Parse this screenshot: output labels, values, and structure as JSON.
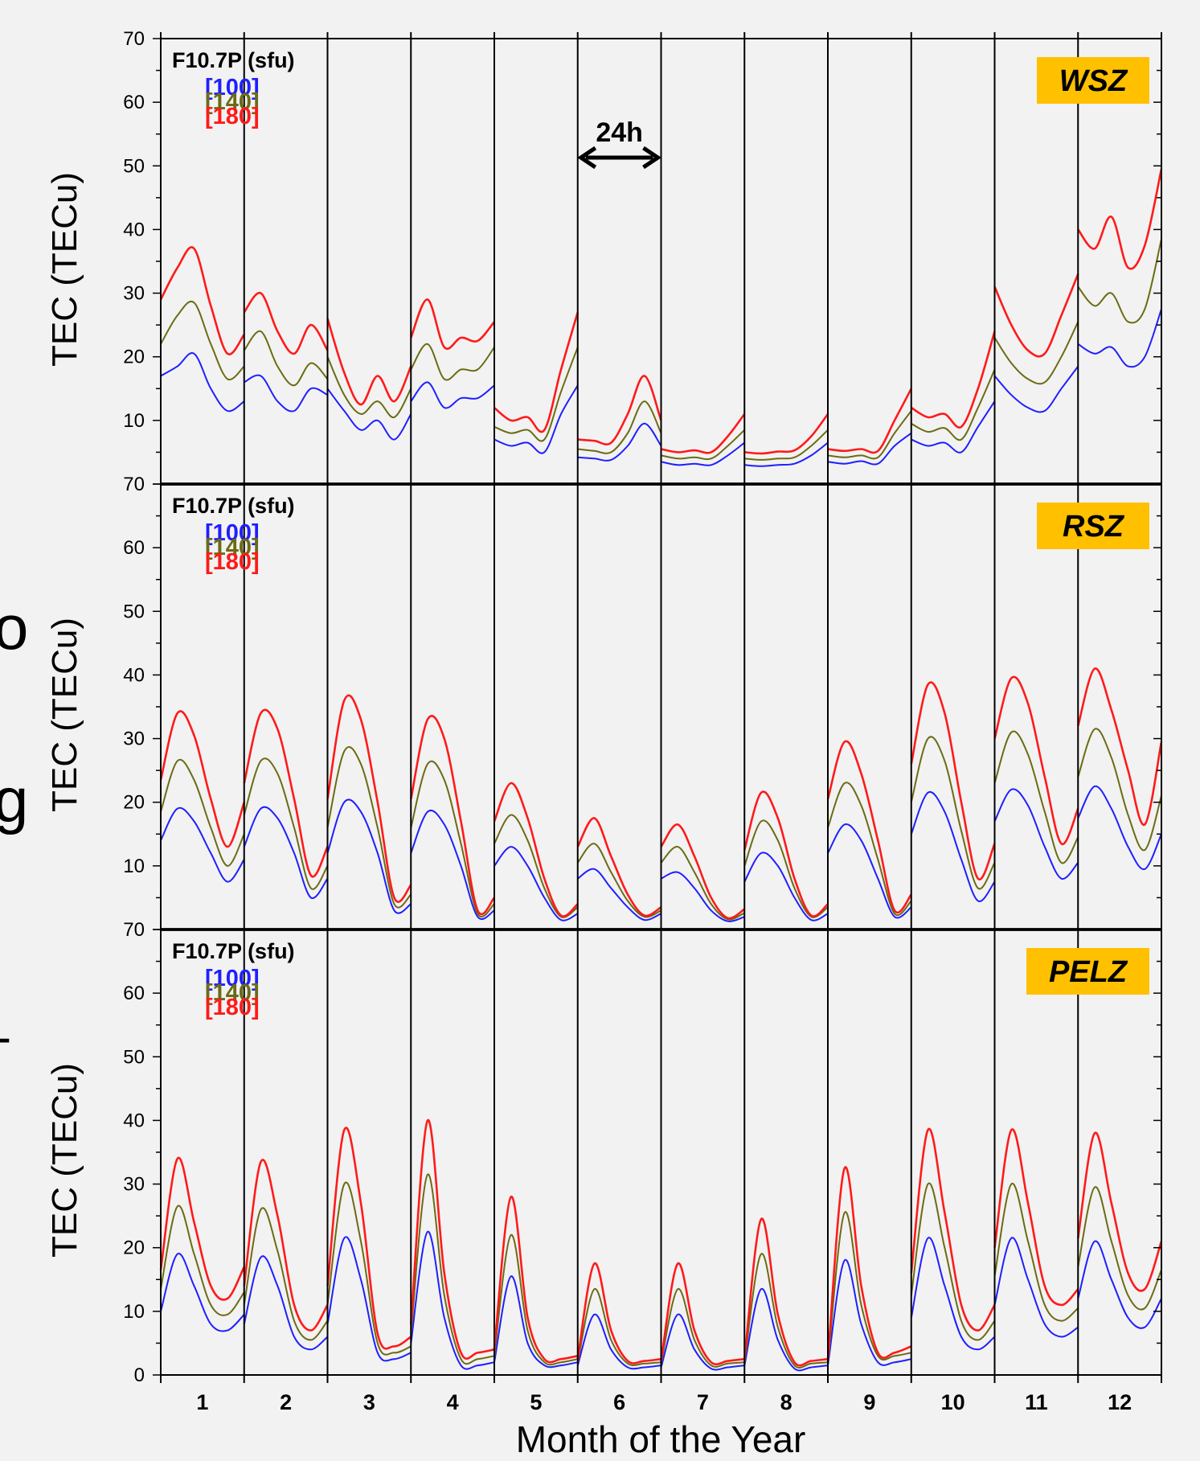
{
  "figure": {
    "xlabel": "Month of the Year",
    "ylabel": "TEC (TECu)",
    "legend_title": "F10.7P (sfu)",
    "x_tick_labels": [
      "1",
      "2",
      "3",
      "4",
      "5",
      "6",
      "7",
      "8",
      "9",
      "10",
      "11",
      "12"
    ],
    "annotation_24h": "24h",
    "edge_glyphs": [
      "o",
      "g",
      "-"
    ],
    "colors": {
      "background": "#f2f2f2",
      "badge": "#ffc000",
      "series_100": "#1f1fff",
      "series_140": "#6b6b14",
      "series_180": "#ff1a1a"
    }
  },
  "chart_data": [
    {
      "type": "line",
      "title": "WSZ",
      "ylabel": "TEC (TECu)",
      "ylim": [
        0,
        70
      ],
      "y_ticks": [
        10,
        20,
        30,
        40,
        50,
        60,
        70
      ],
      "y_tick_labels": [
        "10",
        "20",
        "30",
        "40",
        "50",
        "60",
        "70"
      ],
      "xlabel": "",
      "x": [
        1,
        2,
        3,
        4,
        5,
        6,
        7,
        8,
        9,
        10,
        11,
        12
      ],
      "legend_title": "F10.7P (sfu)",
      "series": [
        {
          "name": "[100]",
          "color": "#1f1fff",
          "values": [
            [
              17,
              18.5,
              20.5,
              15,
              11.5,
              13
            ],
            [
              16,
              17,
              13,
              11.5,
              15,
              14
            ],
            [
              15,
              11.5,
              8.5,
              10,
              7,
              11
            ],
            [
              13,
              16,
              12,
              13.5,
              13.5,
              15.5
            ],
            [
              7,
              6,
              6.5,
              5,
              11,
              15.5
            ],
            [
              4.2,
              4,
              3.8,
              6,
              9.5,
              6
            ],
            [
              3.5,
              3,
              3.2,
              3,
              4.5,
              6.5
            ],
            [
              3,
              2.8,
              3,
              3.2,
              4.5,
              6.5
            ],
            [
              3.5,
              3.2,
              3.6,
              3.2,
              6,
              8
            ],
            [
              7,
              6,
              6.5,
              5,
              9,
              13
            ],
            [
              17,
              14,
              12,
              11.5,
              15,
              18.5
            ],
            [
              22,
              20.5,
              21.5,
              18.5,
              20,
              27.5
            ]
          ]
        },
        {
          "name": "[140]",
          "color": "#6b6b14",
          "values": [
            [
              22,
              26.5,
              28.5,
              22,
              16.5,
              18.5
            ],
            [
              21,
              24,
              18.5,
              15.5,
              19,
              16.5
            ],
            [
              20,
              14,
              11,
              13,
              10.5,
              15
            ],
            [
              18,
              22,
              16.5,
              18,
              18,
              21.5
            ],
            [
              9,
              8,
              8.5,
              7,
              14.5,
              21.5
            ],
            [
              5.5,
              5.2,
              5,
              8,
              13,
              8
            ],
            [
              4.5,
              4,
              4.2,
              4,
              6,
              8.5
            ],
            [
              4,
              3.8,
              4,
              4.2,
              6,
              8.5
            ],
            [
              4.5,
              4.2,
              4.5,
              4.2,
              8,
              11.5
            ],
            [
              9.5,
              8.2,
              8.8,
              7,
              12,
              18
            ],
            [
              23,
              19,
              16.5,
              16,
              20,
              25.5
            ],
            [
              31,
              28,
              30,
              25.5,
              27.5,
              38.5
            ]
          ]
        },
        {
          "name": "[180]",
          "color": "#ff1a1a",
          "values": [
            [
              29,
              34,
              37,
              28,
              20.5,
              23.5
            ],
            [
              27,
              30,
              24,
              20.5,
              25,
              21
            ],
            [
              26,
              17.5,
              12.5,
              17,
              13,
              18.5
            ],
            [
              23,
              29,
              21.5,
              23,
              22.5,
              25.5
            ],
            [
              12,
              10,
              10.5,
              8.5,
              18,
              27
            ],
            [
              7,
              6.8,
              6.5,
              11,
              17,
              10
            ],
            [
              5.5,
              5,
              5.3,
              5,
              7.5,
              11
            ],
            [
              5,
              4.8,
              5.1,
              5.3,
              7.5,
              11
            ],
            [
              5.5,
              5.2,
              5.5,
              5.2,
              10,
              15
            ],
            [
              12,
              10.5,
              11,
              9,
              15,
              24
            ],
            [
              31,
              25,
              21,
              20.5,
              26.5,
              33
            ],
            [
              40,
              37,
              42,
              34,
              37.5,
              49.5
            ]
          ]
        }
      ]
    },
    {
      "type": "line",
      "title": "RSZ",
      "ylabel": "TEC (TECu)",
      "ylim": [
        0,
        70
      ],
      "y_ticks": [
        10,
        20,
        30,
        40,
        50,
        60,
        70
      ],
      "y_tick_labels": [
        "10",
        "20",
        "30",
        "40",
        "50",
        "60",
        "70"
      ],
      "xlabel": "",
      "x": [
        1,
        2,
        3,
        4,
        5,
        6,
        7,
        8,
        9,
        10,
        11,
        12
      ],
      "legend_title": "F10.7P (sfu)",
      "series": [
        {
          "name": "[100]",
          "color": "#1f1fff",
          "values": [
            [
              14,
              19,
              17,
              12,
              7.5,
              11
            ],
            [
              13,
              19,
              17.5,
              12,
              5,
              8
            ],
            [
              12,
              20,
              18.5,
              12,
              3,
              4
            ],
            [
              12,
              18.5,
              16.5,
              10,
              2,
              3
            ],
            [
              10,
              13,
              10,
              5,
              1.5,
              2.5
            ],
            [
              8,
              9.5,
              6.5,
              3.5,
              1.5,
              2.5
            ],
            [
              8,
              9,
              6.5,
              3,
              1.3,
              2
            ],
            [
              7.5,
              12,
              10,
              5,
              1.5,
              2.5
            ],
            [
              12,
              16.5,
              14,
              8,
              2,
              3.5
            ],
            [
              15,
              21.5,
              18.5,
              11,
              4.5,
              7.5
            ],
            [
              17,
              22,
              19.5,
              13,
              8,
              10.5
            ],
            [
              17.5,
              22.5,
              19,
              13,
              9.5,
              15
            ]
          ]
        },
        {
          "name": "[140]",
          "color": "#6b6b14",
          "values": [
            [
              18.5,
              26.5,
              23.5,
              16,
              10,
              15
            ],
            [
              18,
              26.5,
              24.5,
              16,
              6.5,
              10
            ],
            [
              16,
              28,
              26,
              16,
              4,
              5.5
            ],
            [
              16,
              26,
              23.5,
              13.5,
              2.5,
              4
            ],
            [
              13.5,
              18,
              14,
              6.5,
              2,
              3.5
            ],
            [
              10.5,
              13.5,
              9,
              4.5,
              2,
              3
            ],
            [
              10.5,
              13,
              9,
              4,
              1.6,
              2.6
            ],
            [
              10,
              17,
              14,
              6.5,
              2,
              3.5
            ],
            [
              16,
              23,
              19.5,
              11,
              2.5,
              4.5
            ],
            [
              20,
              30,
              26.5,
              15.5,
              6.5,
              10.5
            ],
            [
              23,
              31,
              27.5,
              18.5,
              10.5,
              14.5
            ],
            [
              24,
              31.5,
              27,
              18,
              12.5,
              21
            ]
          ]
        },
        {
          "name": "[180]",
          "color": "#ff1a1a",
          "values": [
            [
              23.5,
              34,
              30.5,
              20.5,
              13,
              20
            ],
            [
              23,
              34,
              31.5,
              20.5,
              8.5,
              13
            ],
            [
              20.5,
              36,
              33,
              20,
              5,
              7
            ],
            [
              20.5,
              33,
              30,
              17,
              3,
              5
            ],
            [
              17,
              23,
              17.5,
              8,
              2.2,
              4
            ],
            [
              13,
              17.5,
              11.5,
              5.5,
              2.2,
              3.5
            ],
            [
              13,
              16.5,
              11.5,
              5,
              1.8,
              3.2
            ],
            [
              12.5,
              21.5,
              17.5,
              8,
              2.2,
              4
            ],
            [
              20.5,
              29.5,
              24.5,
              14,
              3,
              5.5
            ],
            [
              26,
              38.5,
              34,
              20,
              8,
              13.5
            ],
            [
              30,
              39.5,
              35.5,
              24,
              13.5,
              19
            ],
            [
              32,
              41,
              34.5,
              25,
              16.5,
              29.5
            ]
          ]
        }
      ]
    },
    {
      "type": "line",
      "title": "PELZ",
      "ylabel": "TEC (TECu)",
      "ylim": [
        0,
        70
      ],
      "y_ticks": [
        0,
        10,
        20,
        30,
        40,
        50,
        60,
        70
      ],
      "y_tick_labels": [
        "0",
        "10",
        "20",
        "30",
        "40",
        "50",
        "60",
        "70"
      ],
      "xlabel": "Month of the Year",
      "x": [
        1,
        2,
        3,
        4,
        5,
        6,
        7,
        8,
        9,
        10,
        11,
        12
      ],
      "x_tick_labels": [
        "1",
        "2",
        "3",
        "4",
        "5",
        "6",
        "7",
        "8",
        "9",
        "10",
        "11",
        "12"
      ],
      "legend_title": "F10.7P (sfu)",
      "series": [
        {
          "name": "[100]",
          "color": "#1f1fff",
          "values": [
            [
              10,
              19,
              14,
              8,
              7,
              9.5
            ],
            [
              8,
              18.5,
              14,
              6,
              4,
              6
            ],
            [
              8,
              21.5,
              15,
              3.5,
              2.5,
              3.5
            ],
            [
              5,
              22.5,
              9,
              1.5,
              1.5,
              2
            ],
            [
              2,
              15.5,
              5,
              1.5,
              1.5,
              2
            ],
            [
              1.5,
              9.5,
              4,
              1.2,
              1.2,
              1.5
            ],
            [
              1.2,
              9.5,
              4,
              1,
              1.2,
              1.5
            ],
            [
              1.5,
              13.5,
              5.5,
              1,
              1.2,
              1.5
            ],
            [
              1.5,
              18,
              8,
              2,
              2,
              2.5
            ],
            [
              9,
              21.5,
              14,
              6,
              4,
              6
            ],
            [
              11,
              21.5,
              15,
              8,
              6,
              7.5
            ],
            [
              12,
              21,
              15,
              9,
              7.5,
              12
            ]
          ]
        },
        {
          "name": "[140]",
          "color": "#6b6b14",
          "values": [
            [
              13.5,
              26.5,
              19,
              11,
              9.5,
              13
            ],
            [
              11,
              26,
              19.5,
              8.5,
              5.5,
              8.5
            ],
            [
              11,
              30,
              21,
              5,
              3.5,
              4.5
            ],
            [
              6.5,
              31.5,
              12.5,
              2.5,
              2.5,
              3
            ],
            [
              3,
              22,
              7,
              2,
              2,
              2.5
            ],
            [
              2,
              13.5,
              5.5,
              1.8,
              1.8,
              2
            ],
            [
              1.8,
              13.5,
              5.5,
              1.5,
              1.8,
              2
            ],
            [
              2,
              19,
              7.5,
              1.5,
              1.8,
              2
            ],
            [
              2,
              25.5,
              11,
              3,
              3,
              3.5
            ],
            [
              12.5,
              30,
              20,
              8.5,
              5.5,
              8.5
            ],
            [
              15.5,
              30,
              21,
              11,
              8.5,
              10.5
            ],
            [
              17,
              29.5,
              21,
              12.5,
              10.5,
              16.5
            ]
          ]
        },
        {
          "name": "[180]",
          "color": "#ff1a1a",
          "values": [
            [
              16.5,
              34,
              24,
              14,
              12,
              17
            ],
            [
              14,
              33.5,
              25,
              11,
              7,
              11
            ],
            [
              14,
              38.5,
              27,
              6.5,
              4.5,
              6
            ],
            [
              8,
              40,
              16,
              3.5,
              3.5,
              4
            ],
            [
              4,
              28,
              9,
              2.5,
              2.5,
              3
            ],
            [
              2.5,
              17.5,
              7,
              2.2,
              2.2,
              2.5
            ],
            [
              2.2,
              17.5,
              7,
              2,
              2.2,
              2.5
            ],
            [
              2.5,
              24.5,
              9.5,
              2,
              2.2,
              2.5
            ],
            [
              2.5,
              32.5,
              14,
              3.5,
              3.5,
              4.5
            ],
            [
              16,
              38.5,
              25.5,
              11,
              7,
              11
            ],
            [
              20,
              38.5,
              27,
              14,
              11,
              13.5
            ],
            [
              21.5,
              38,
              27,
              16,
              13.5,
              21
            ]
          ]
        }
      ]
    }
  ]
}
